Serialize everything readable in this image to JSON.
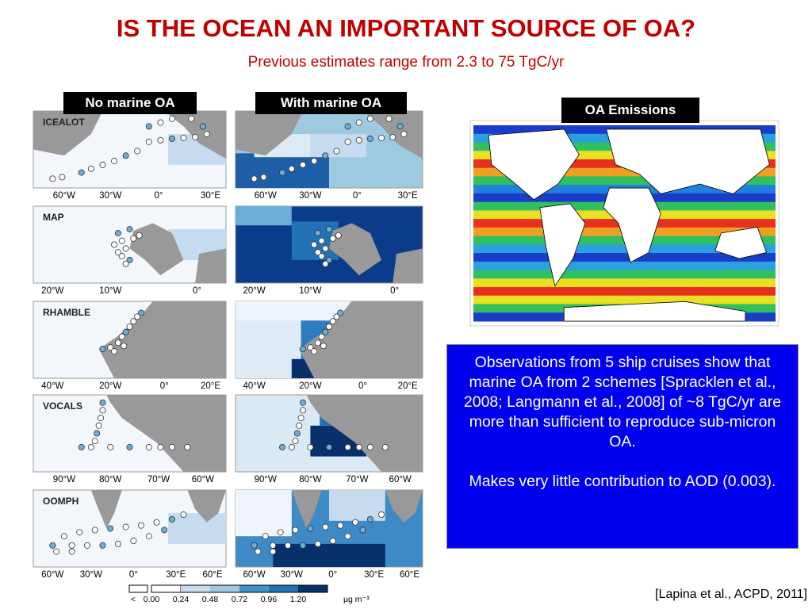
{
  "title": "IS THE OCEAN AN IMPORTANT SOURCE OF OA?",
  "subtitle": "Previous estimates range from 2.3 to 75 TgC/yr",
  "column_labels": [
    "No marine OA",
    "With marine OA"
  ],
  "panels": [
    {
      "name": "ICEALOT",
      "axis_labels": [
        "60°W",
        "30°W",
        "0°",
        "30°E"
      ]
    },
    {
      "name": "MAP",
      "axis_labels": [
        "20°W",
        "10°W",
        "0°"
      ]
    },
    {
      "name": "RHAMBLE",
      "axis_labels": [
        "40°W",
        "20°W",
        "0°",
        "20°E"
      ]
    },
    {
      "name": "VOCALS",
      "axis_labels": [
        "90°W",
        "80°W",
        "70°W",
        "60°W"
      ]
    },
    {
      "name": "OOMPH",
      "axis_labels": [
        "60°W",
        "30°W",
        "0°",
        "30°E",
        "60°E"
      ]
    }
  ],
  "colorbar": {
    "labels": [
      "<",
      "0.00",
      "0.24",
      "0.48",
      "0.72",
      "0.96",
      "1.20"
    ],
    "unit": "µg m⁻³"
  },
  "emissions_label": "OA Emissions",
  "observations": [
    "Observations from 5 ship cruises show that marine OA from 2 schemes [Spracklen et al., 2008; Langmann et al., 2008] of ~8 TgC/yr are more than sufficient to reproduce sub-micron OA.",
    "Makes very little contribution to AOD (0.003)."
  ],
  "citation": "[Lapina et al., ACPD, 2011]"
}
